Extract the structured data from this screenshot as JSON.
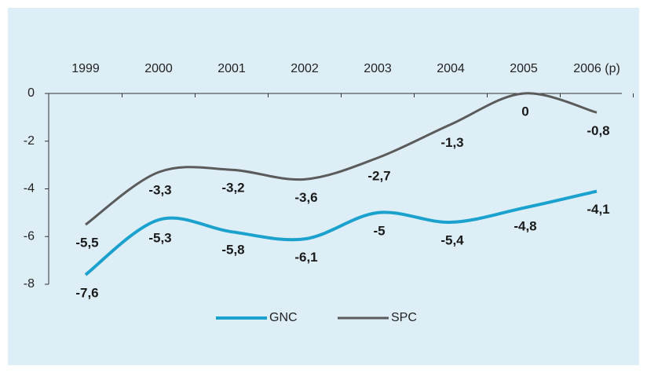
{
  "chart_data": {
    "type": "line",
    "categories": [
      "1999",
      "2000",
      "2001",
      "2002",
      "2003",
      "2004",
      "2005",
      "2006 (p)"
    ],
    "series": [
      {
        "name": "GNC",
        "color": "#1ba1cd",
        "values": [
          -7.6,
          -5.3,
          -5.8,
          -6.1,
          -5,
          -5.4,
          -4.8,
          -4.1
        ],
        "value_labels": [
          "-7,6",
          "-5,3",
          "-5,8",
          "-6,1",
          "-5",
          "-5,4",
          "-4,8",
          "-4,1"
        ]
      },
      {
        "name": "SPC",
        "color": "#5b5b5b",
        "values": [
          -5.5,
          -3.3,
          -3.2,
          -3.6,
          -2.7,
          -1.3,
          0,
          -0.8
        ],
        "value_labels": [
          "-5,5",
          "-3,3",
          "-3,2",
          "-3,6",
          "-2,7",
          "-1,3",
          "0",
          "-0,8"
        ]
      }
    ],
    "ylim": [
      -8,
      0
    ],
    "yticks": [
      0,
      -2,
      -4,
      -6,
      -8
    ],
    "legend": "bottom"
  }
}
